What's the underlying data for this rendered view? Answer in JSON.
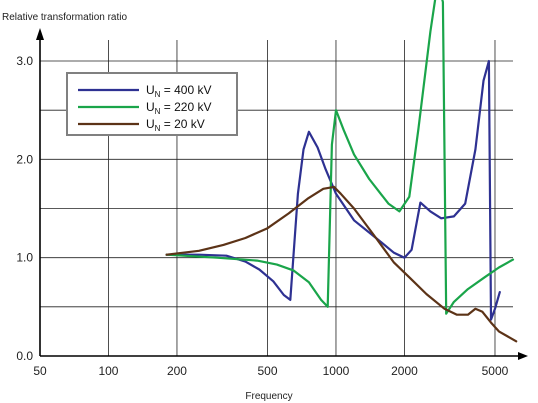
{
  "chart_data": {
    "type": "line",
    "title": "",
    "ylabel": "Relative transformation ratio",
    "xlabel": "Frequency",
    "x_scale": "log",
    "xlim": [
      50,
      6000
    ],
    "ylim": [
      0,
      3.0
    ],
    "x_ticks": [
      "50",
      "100",
      "200",
      "500",
      "1000",
      "2000",
      "5000"
    ],
    "y_ticks": [
      "0.0",
      "1.0",
      "2.0",
      "3.0"
    ],
    "grid": true,
    "legend_position": "top-left",
    "series": [
      {
        "name": "U_N = 400 kV",
        "legend_main": "U",
        "legend_sub": "N",
        "legend_rest": " = 400 kV",
        "color": "#2e3192",
        "x": [
          180,
          250,
          330,
          400,
          460,
          530,
          590,
          630,
          680,
          720,
          760,
          830,
          900,
          1000,
          1200,
          1500,
          1800,
          2000,
          2150,
          2350,
          2600,
          2900,
          3300,
          3700,
          4100,
          4450,
          4700,
          4800,
          5000,
          5250
        ],
        "y": [
          1.03,
          1.03,
          1.02,
          0.96,
          0.88,
          0.76,
          0.62,
          0.57,
          1.65,
          2.1,
          2.28,
          2.12,
          1.9,
          1.65,
          1.38,
          1.2,
          1.05,
          1.0,
          1.08,
          1.56,
          1.47,
          1.4,
          1.42,
          1.55,
          2.1,
          2.8,
          3.0,
          0.37,
          0.48,
          0.65
        ]
      },
      {
        "name": "U_N = 220 kV",
        "legend_main": "U",
        "legend_sub": "N",
        "legend_rest": " = 220 kV",
        "color": "#1aa54a",
        "x": [
          180,
          300,
          450,
          550,
          650,
          760,
          860,
          920,
          960,
          1000,
          1080,
          1200,
          1400,
          1700,
          1900,
          2100,
          2300,
          2600,
          2800,
          2950,
          3050,
          3300,
          3800,
          4500,
          5200,
          6000
        ],
        "y": [
          1.03,
          1.0,
          0.97,
          0.93,
          0.87,
          0.75,
          0.57,
          0.5,
          2.15,
          2.5,
          2.3,
          2.05,
          1.8,
          1.55,
          1.47,
          1.62,
          2.3,
          3.3,
          3.8,
          3.6,
          0.43,
          0.55,
          0.68,
          0.8,
          0.9,
          0.98
        ]
      },
      {
        "name": "U_N = 20 kV",
        "legend_main": "U",
        "legend_sub": "N",
        "legend_rest": " = 20 kV",
        "color": "#5c3317",
        "x": [
          180,
          250,
          320,
          400,
          500,
          620,
          750,
          880,
          980,
          1050,
          1200,
          1500,
          1800,
          2100,
          2500,
          3000,
          3400,
          3800,
          4100,
          4400,
          4800,
          5200,
          6200
        ],
        "y": [
          1.03,
          1.07,
          1.13,
          1.2,
          1.3,
          1.45,
          1.6,
          1.7,
          1.72,
          1.65,
          1.5,
          1.2,
          0.95,
          0.8,
          0.63,
          0.48,
          0.42,
          0.42,
          0.48,
          0.45,
          0.34,
          0.25,
          0.15
        ]
      }
    ]
  }
}
